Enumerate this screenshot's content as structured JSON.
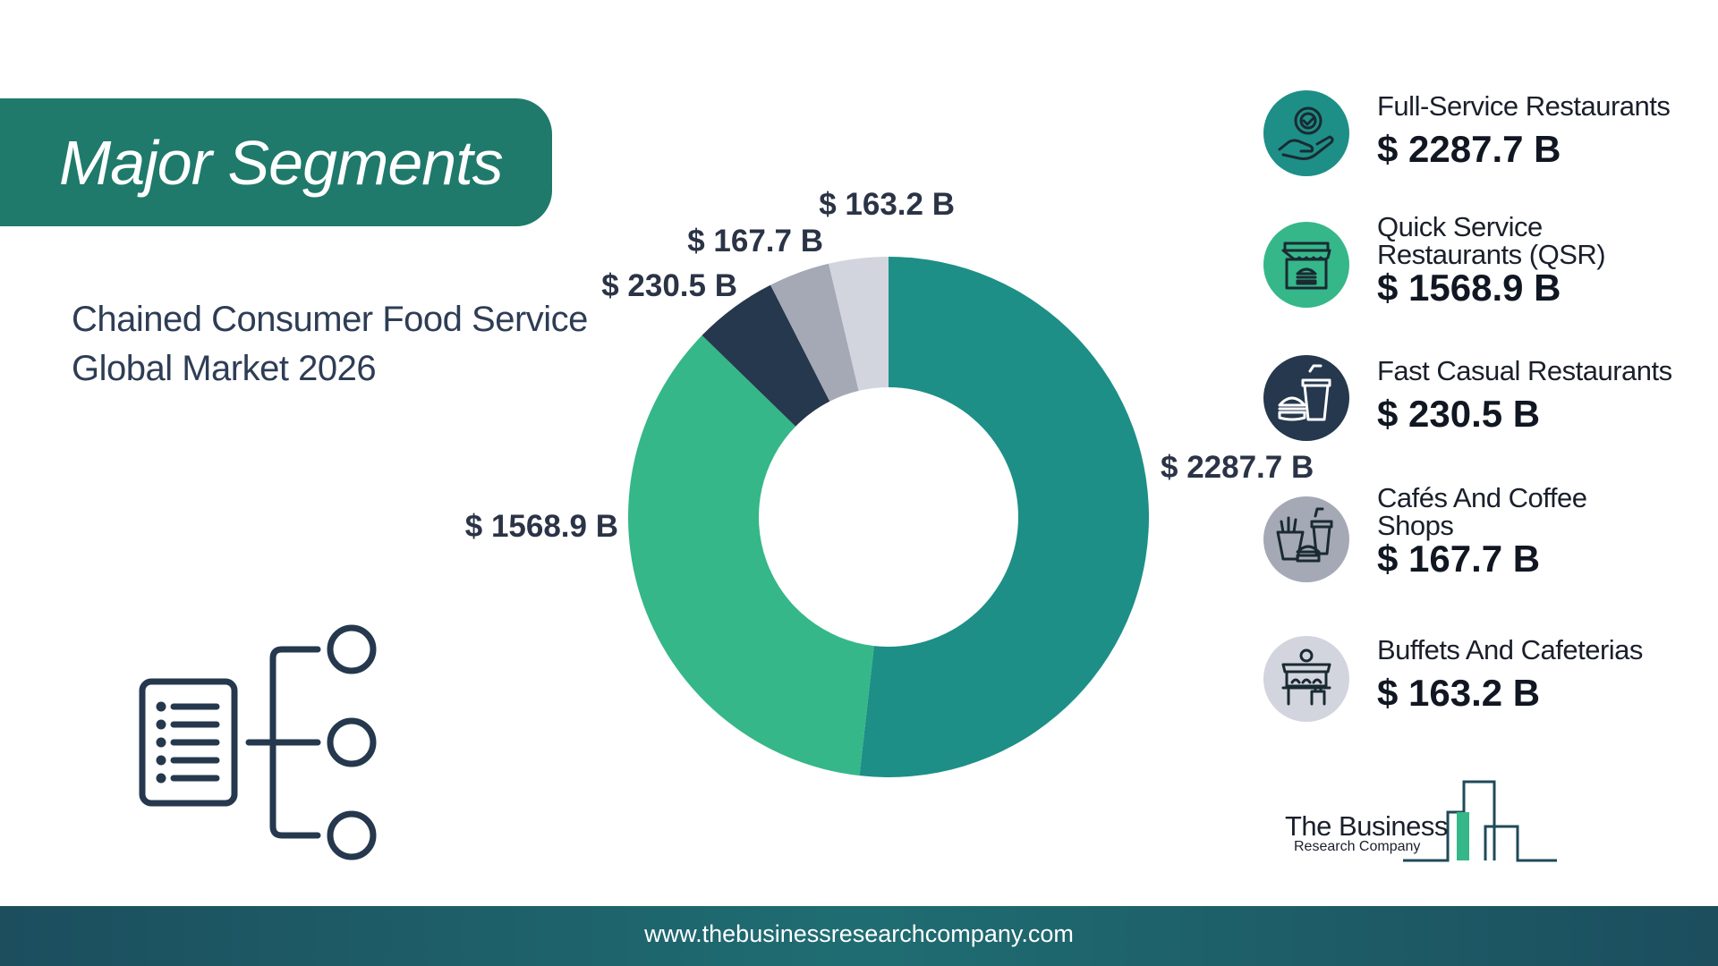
{
  "header": {
    "title": "Major Segments",
    "subtitle_line1": "Chained Consumer Food Service",
    "subtitle_line2": "Global Market 2026"
  },
  "colors": {
    "banner": "#1f7a6b",
    "full_service": "#1d8f86",
    "quick_service": "#35b789",
    "fast_casual": "#25384d",
    "cafes": "#a4a9b5",
    "buffets": "#d3d5de"
  },
  "chart_data": {
    "type": "pie",
    "variant": "donut",
    "unit": "B",
    "categories": [
      "Full-Service Restaurants",
      "Quick Service Restaurants (QSR)",
      "Fast Casual Restaurants",
      "Cafés And Coffee Shops",
      "Buffets And Cafeterias"
    ],
    "values": [
      2287.7,
      1568.9,
      230.5,
      167.7,
      163.2
    ],
    "data_labels": [
      "$ 2287.7 B",
      "$ 1568.9 B",
      "$ 230.5 B",
      "$ 167.7 B",
      "$ 163.2 B"
    ],
    "colors": [
      "#1d8f86",
      "#35b789",
      "#25384d",
      "#a4a9b5",
      "#d3d5de"
    ],
    "legend_position": "right"
  },
  "legend": [
    {
      "name_line1": "Full-Service Restaurants",
      "name_line2": "",
      "value": "$ 2287.7 B",
      "icon": "hand-badge-icon",
      "icon_bg": "#1d8f86"
    },
    {
      "name_line1": "Quick Service",
      "name_line2": "Restaurants (QSR)",
      "value": "$ 1568.9 B",
      "icon": "storefront-burger-icon",
      "icon_bg": "#35b789"
    },
    {
      "name_line1": "Fast Casual Restaurants",
      "name_line2": "",
      "value": "$ 230.5 B",
      "icon": "burger-drink-icon",
      "icon_bg": "#25384d"
    },
    {
      "name_line1": "Cafés And Coffee",
      "name_line2": "Shops",
      "value": "$ 167.7 B",
      "icon": "fries-burger-drink-icon",
      "icon_bg": "#a4a9b5"
    },
    {
      "name_line1": "Buffets And Cafeterias",
      "name_line2": "",
      "value": "$ 163.2 B",
      "icon": "food-counter-icon",
      "icon_bg": "#d3d5de"
    }
  ],
  "logo": {
    "name": "The Business",
    "sub": "Research Company"
  },
  "footer": {
    "url": "www.thebusinessresearchcompany.com"
  }
}
